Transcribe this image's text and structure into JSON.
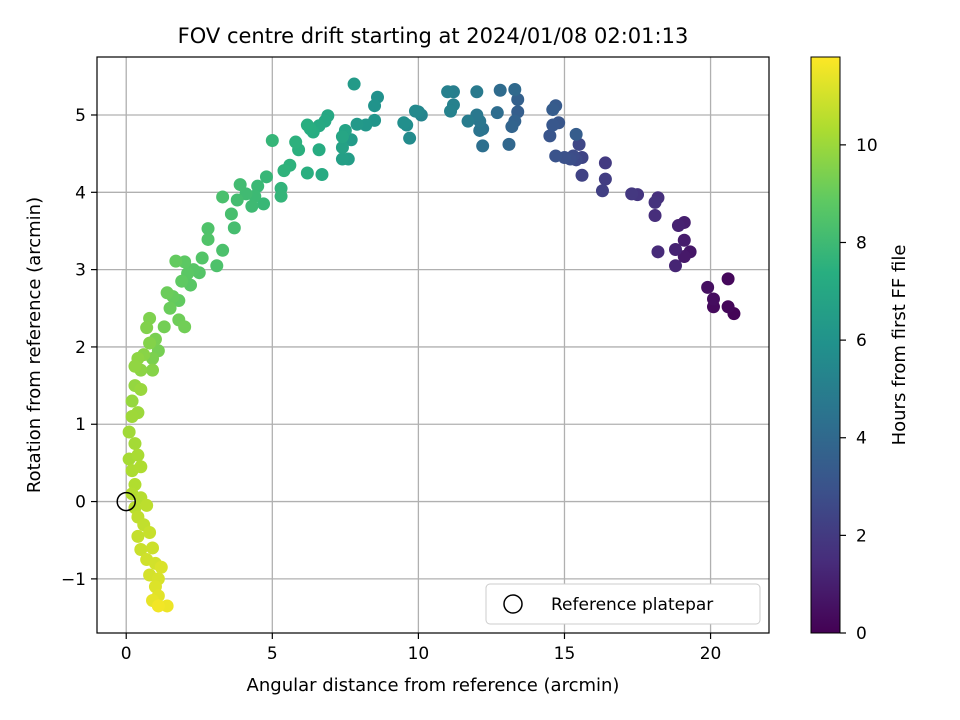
{
  "chart_data": {
    "type": "scatter",
    "title": "FOV centre drift starting at 2024/01/08 02:01:13",
    "xlabel": "Angular distance from reference (arcmin)",
    "ylabel": "Rotation from reference (arcmin)",
    "xlim": [
      -1,
      22
    ],
    "ylim": [
      -1.7,
      5.75
    ],
    "xticks": [
      0,
      5,
      10,
      15,
      20
    ],
    "yticks": [
      -1,
      0,
      1,
      2,
      3,
      4,
      5
    ],
    "grid": true,
    "legend": {
      "position": "lower-right",
      "entries": [
        "Reference platepar"
      ]
    },
    "reference_point": {
      "x": 0,
      "y": 0,
      "label": "Reference platepar"
    },
    "colorbar": {
      "label": "Hours from first FF file",
      "colormap": "viridis",
      "range": [
        0,
        11.8
      ],
      "ticks": [
        0,
        2,
        4,
        6,
        8,
        10
      ]
    },
    "series": [
      {
        "color_by": "Hours from first FF file",
        "points": [
          [
            20.8,
            2.43,
            0.1
          ],
          [
            20.6,
            2.52,
            0.2
          ],
          [
            20.6,
            2.88,
            0.25
          ],
          [
            20.1,
            2.52,
            0.3
          ],
          [
            20.1,
            2.62,
            0.4
          ],
          [
            19.9,
            2.77,
            0.5
          ],
          [
            19.3,
            3.23,
            0.7
          ],
          [
            19.1,
            3.17,
            0.8
          ],
          [
            19.1,
            3.38,
            0.9
          ],
          [
            19.1,
            3.61,
            1.0
          ],
          [
            18.9,
            3.57,
            1.1
          ],
          [
            18.8,
            3.26,
            1.15
          ],
          [
            18.8,
            3.05,
            1.2
          ],
          [
            18.2,
            3.23,
            1.4
          ],
          [
            18.1,
            3.7,
            1.5
          ],
          [
            18.2,
            3.93,
            1.6
          ],
          [
            18.1,
            3.87,
            1.7
          ],
          [
            17.5,
            3.97,
            1.8
          ],
          [
            17.3,
            3.98,
            1.9
          ],
          [
            16.4,
            4.38,
            2.0
          ],
          [
            16.4,
            4.17,
            2.1
          ],
          [
            16.3,
            4.02,
            2.2
          ],
          [
            15.6,
            4.22,
            2.3
          ],
          [
            15.6,
            4.45,
            2.4
          ],
          [
            15.5,
            4.62,
            2.5
          ],
          [
            15.4,
            4.42,
            2.6
          ],
          [
            15.3,
            4.47,
            2.7
          ],
          [
            15.2,
            4.43,
            2.8
          ],
          [
            15.0,
            4.45,
            2.9
          ],
          [
            14.7,
            4.47,
            3.0
          ],
          [
            14.5,
            4.73,
            3.1
          ],
          [
            14.8,
            4.9,
            3.15
          ],
          [
            14.6,
            4.87,
            3.2
          ],
          [
            14.7,
            5.12,
            3.3
          ],
          [
            14.6,
            5.07,
            3.4
          ],
          [
            15.4,
            4.75,
            3.45
          ],
          [
            13.4,
            5.04,
            3.5
          ],
          [
            13.4,
            5.2,
            3.6
          ],
          [
            13.3,
            4.92,
            3.7
          ],
          [
            13.2,
            4.85,
            3.8
          ],
          [
            13.1,
            4.62,
            3.9
          ],
          [
            13.3,
            5.33,
            4.0
          ],
          [
            12.8,
            5.32,
            4.1
          ],
          [
            12.7,
            5.03,
            4.2
          ],
          [
            12.2,
            4.6,
            4.3
          ],
          [
            12.2,
            4.82,
            4.4
          ],
          [
            12.1,
            4.8,
            4.5
          ],
          [
            12.1,
            4.92,
            4.6
          ],
          [
            12.0,
            5.0,
            4.7
          ],
          [
            12.0,
            5.3,
            4.8
          ],
          [
            11.7,
            4.92,
            4.9
          ],
          [
            11.2,
            5.3,
            5.0
          ],
          [
            11.0,
            5.3,
            5.1
          ],
          [
            11.2,
            5.13,
            5.15
          ],
          [
            11.1,
            5.05,
            5.2
          ],
          [
            10.1,
            5.0,
            5.3
          ],
          [
            10.0,
            5.04,
            5.4
          ],
          [
            9.9,
            5.05,
            5.5
          ],
          [
            9.7,
            4.7,
            5.6
          ],
          [
            9.6,
            4.87,
            5.7
          ],
          [
            9.5,
            4.9,
            5.8
          ],
          [
            8.6,
            5.23,
            5.9
          ],
          [
            8.5,
            5.12,
            6.0
          ],
          [
            8.5,
            4.93,
            6.1
          ],
          [
            8.2,
            4.87,
            6.2
          ],
          [
            7.9,
            4.88,
            6.3
          ],
          [
            7.8,
            5.4,
            6.35
          ],
          [
            7.7,
            4.68,
            6.4
          ],
          [
            7.6,
            4.43,
            6.5
          ],
          [
            7.4,
            4.43,
            6.6
          ],
          [
            7.4,
            4.58,
            6.7
          ],
          [
            7.5,
            4.8,
            6.8
          ],
          [
            7.4,
            4.72,
            6.9
          ],
          [
            6.9,
            4.99,
            7.0
          ],
          [
            6.8,
            4.92,
            7.05
          ],
          [
            6.6,
            4.86,
            7.1
          ],
          [
            6.7,
            4.23,
            7.15
          ],
          [
            6.6,
            4.55,
            7.2
          ],
          [
            6.4,
            4.78,
            7.25
          ],
          [
            6.3,
            4.82,
            7.3
          ],
          [
            6.2,
            4.87,
            7.35
          ],
          [
            6.2,
            4.25,
            7.4
          ],
          [
            5.9,
            4.55,
            7.45
          ],
          [
            5.8,
            4.65,
            7.5
          ],
          [
            5.6,
            4.35,
            7.55
          ],
          [
            5.4,
            4.28,
            7.6
          ],
          [
            5.3,
            4.05,
            7.65
          ],
          [
            5.3,
            3.95,
            7.7
          ],
          [
            5.0,
            4.67,
            7.75
          ],
          [
            4.8,
            4.2,
            7.8
          ],
          [
            4.7,
            3.85,
            7.85
          ],
          [
            4.5,
            4.08,
            7.9
          ],
          [
            4.4,
            3.95,
            7.95
          ],
          [
            4.3,
            3.82,
            8.0
          ],
          [
            4.1,
            3.98,
            8.05
          ],
          [
            3.9,
            4.1,
            8.1
          ],
          [
            3.8,
            3.9,
            8.15
          ],
          [
            3.7,
            3.54,
            8.2
          ],
          [
            3.6,
            3.72,
            8.25
          ],
          [
            3.3,
            3.94,
            8.3
          ],
          [
            3.3,
            3.25,
            8.35
          ],
          [
            3.1,
            3.05,
            8.4
          ],
          [
            2.8,
            3.53,
            8.45
          ],
          [
            2.8,
            3.39,
            8.5
          ],
          [
            2.6,
            3.15,
            8.55
          ],
          [
            2.5,
            2.96,
            8.6
          ],
          [
            2.3,
            3.0,
            8.65
          ],
          [
            2.2,
            2.8,
            8.7
          ],
          [
            2.1,
            2.95,
            8.75
          ],
          [
            2.0,
            3.1,
            8.8
          ],
          [
            1.9,
            2.85,
            8.85
          ],
          [
            1.8,
            2.6,
            8.9
          ],
          [
            1.7,
            3.11,
            8.95
          ],
          [
            1.6,
            2.65,
            9.0
          ],
          [
            1.5,
            2.5,
            9.05
          ],
          [
            1.4,
            2.7,
            9.1
          ],
          [
            1.8,
            2.35,
            9.15
          ],
          [
            2.0,
            2.26,
            9.2
          ],
          [
            1.3,
            2.26,
            9.25
          ],
          [
            1.1,
            1.95,
            9.3
          ],
          [
            1.0,
            2.1,
            9.35
          ],
          [
            0.9,
            1.85,
            9.4
          ],
          [
            0.8,
            2.37,
            9.45
          ],
          [
            0.7,
            2.25,
            9.5
          ],
          [
            0.8,
            2.05,
            9.55
          ],
          [
            0.9,
            1.7,
            9.6
          ],
          [
            0.6,
            1.9,
            9.65
          ],
          [
            0.5,
            1.7,
            9.7
          ],
          [
            0.4,
            1.85,
            9.75
          ],
          [
            0.3,
            1.75,
            9.8
          ],
          [
            0.3,
            1.5,
            9.85
          ],
          [
            0.2,
            1.3,
            9.9
          ],
          [
            0.5,
            1.45,
            9.95
          ],
          [
            0.4,
            1.15,
            10.0
          ],
          [
            0.2,
            1.1,
            10.05
          ],
          [
            0.1,
            0.9,
            10.1
          ],
          [
            0.3,
            0.75,
            10.15
          ],
          [
            0.1,
            0.55,
            10.2
          ],
          [
            0.4,
            0.6,
            10.25
          ],
          [
            0.2,
            0.4,
            10.3
          ],
          [
            0.5,
            0.45,
            10.35
          ],
          [
            0.3,
            0.22,
            10.4
          ],
          [
            0.2,
            0.1,
            10.45
          ],
          [
            0.5,
            0.05,
            10.5
          ],
          [
            0.3,
            -0.08,
            10.55
          ],
          [
            0.7,
            -0.05,
            10.6
          ],
          [
            0.4,
            -0.2,
            10.65
          ],
          [
            0.6,
            -0.3,
            10.7
          ],
          [
            0.4,
            -0.45,
            10.75
          ],
          [
            0.8,
            -0.4,
            10.8
          ],
          [
            0.5,
            -0.62,
            10.85
          ],
          [
            0.9,
            -0.6,
            10.9
          ],
          [
            0.7,
            -0.75,
            10.95
          ],
          [
            1.0,
            -0.8,
            11.0
          ],
          [
            0.8,
            -0.95,
            11.05
          ],
          [
            1.1,
            -1.0,
            11.1
          ],
          [
            1.2,
            -0.85,
            11.15
          ],
          [
            1.0,
            -1.1,
            11.2
          ],
          [
            1.1,
            -1.22,
            11.3
          ],
          [
            0.9,
            -1.28,
            11.4
          ],
          [
            1.4,
            -1.35,
            11.5
          ],
          [
            1.1,
            -1.35,
            11.6
          ]
        ]
      }
    ]
  }
}
